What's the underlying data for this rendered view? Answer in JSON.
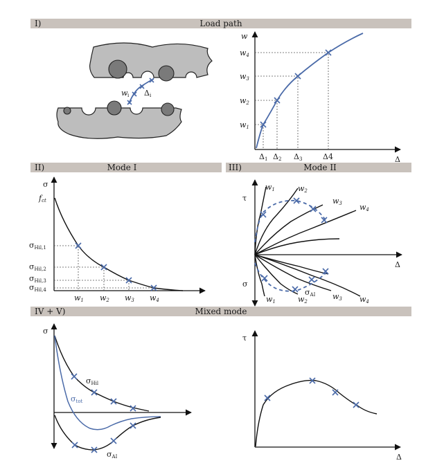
{
  "colors": {
    "header_bg": "#c9c2bc",
    "curve_blue": "#4a6aa8",
    "aggregate": "#7a7a7a",
    "concrete": "#bdbdbd"
  },
  "panels": {
    "load_path": {
      "num": "I)",
      "title": "Load path",
      "crack_labels": {
        "w": "w",
        "w_sub": "i",
        "delta": "Δ",
        "delta_sub": "i"
      },
      "chart": {
        "y_axis": "w",
        "x_axis": "Δ",
        "y_ticks": [
          {
            "base": "w",
            "sub": "4"
          },
          {
            "base": "w",
            "sub": "3"
          },
          {
            "base": "w",
            "sub": "2"
          },
          {
            "base": "w",
            "sub": "1"
          }
        ],
        "x_ticks": [
          {
            "base": "Δ",
            "sub": "1"
          },
          {
            "base": "Δ",
            "sub": "2"
          },
          {
            "base": "Δ",
            "sub": "3"
          },
          {
            "base": "Δ4",
            "sub": ""
          }
        ]
      }
    },
    "mode1": {
      "num": "II)",
      "title": "Mode I",
      "y_axis": "σ",
      "fct_base": "f",
      "fct_sub": "ct",
      "y_ticks": [
        {
          "base": "σ",
          "sub": "Hil,1"
        },
        {
          "base": "σ",
          "sub": "Hil,2"
        },
        {
          "base": "σ",
          "sub": "Hil,3"
        },
        {
          "base": "σ",
          "sub": "Hil,4"
        }
      ],
      "x_ticks": [
        {
          "base": "w",
          "sub": "1"
        },
        {
          "base": "w",
          "sub": "2"
        },
        {
          "base": "w",
          "sub": "3"
        },
        {
          "base": "w",
          "sub": "4"
        }
      ]
    },
    "mode2": {
      "num": "III)",
      "title": "Mode II",
      "tau": "τ",
      "sigma": "σ",
      "x_axis": "Δ",
      "top_labels": [
        {
          "base": "w",
          "sub": "1"
        },
        {
          "base": "w",
          "sub": "2"
        },
        {
          "base": "w",
          "sub": "3"
        },
        {
          "base": "w",
          "sub": "4"
        }
      ],
      "bottom_labels": [
        {
          "base": "w",
          "sub": "1"
        },
        {
          "base": "w",
          "sub": "2"
        },
        {
          "base": "w",
          "sub": "3"
        },
        {
          "base": "w",
          "sub": "4"
        }
      ],
      "sigma_ai": {
        "base": "σ",
        "sub": "AI"
      }
    },
    "mixed": {
      "num": "IV + V)",
      "title": "Mixed mode",
      "left": {
        "y_axis": "σ",
        "hil": {
          "base": "σ",
          "sub": "Hil"
        },
        "tot": {
          "base": "σ",
          "sub": "tot"
        },
        "ai": {
          "base": "σ",
          "sub": "AI"
        }
      },
      "right": {
        "y_axis": "τ",
        "x_axis": "Δ"
      }
    }
  }
}
